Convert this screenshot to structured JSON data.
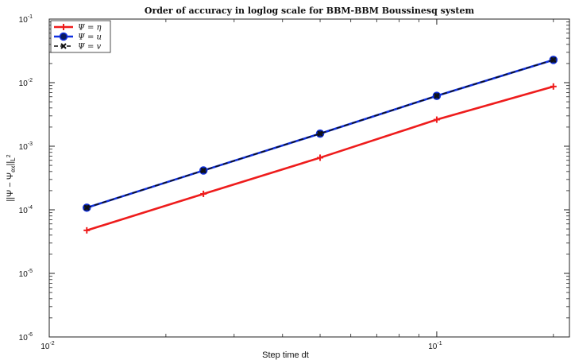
{
  "chart_data": {
    "type": "line",
    "title": "Order of accuracy in loglog scale for BBM-BBM Boussinesq system",
    "xlabel": "Step time dt",
    "ylabel": "||Ψ − Ψex||L2",
    "xscale": "log",
    "yscale": "log",
    "xlim": [
      0.01,
      0.22
    ],
    "ylim": [
      1e-06,
      0.1
    ],
    "grid": false,
    "legend_position": "top-left",
    "x_ticks": [
      {
        "value": 0.01,
        "base": "10",
        "exp": "-2"
      },
      {
        "value": 0.1,
        "base": "10",
        "exp": "-1"
      }
    ],
    "y_ticks": [
      {
        "value": 1e-06,
        "base": "10",
        "exp": "-6"
      },
      {
        "value": 1e-05,
        "base": "10",
        "exp": "-5"
      },
      {
        "value": 0.0001,
        "base": "10",
        "exp": "-4"
      },
      {
        "value": 0.001,
        "base": "10",
        "exp": "-3"
      },
      {
        "value": 0.01,
        "base": "10",
        "exp": "-2"
      },
      {
        "value": 0.1,
        "base": "10",
        "exp": "-1"
      }
    ],
    "x": [
      0.0125,
      0.025,
      0.05,
      0.1,
      0.2
    ],
    "series": [
      {
        "name": "Ψ = η",
        "color": "#ee1c1c",
        "marker": "plus",
        "dashed": false,
        "values": [
          4.75e-05,
          0.000178,
          0.00066,
          0.00262,
          0.0087
        ]
      },
      {
        "name": "Ψ = u",
        "color": "#1030e0",
        "marker": "circle",
        "dashed": false,
        "values": [
          0.000108,
          0.000415,
          0.00158,
          0.0062,
          0.0228
        ]
      },
      {
        "name": "Ψ = v",
        "color": "#111111",
        "marker": "x",
        "dashed": true,
        "values": [
          0.000108,
          0.000415,
          0.00158,
          0.0062,
          0.0228
        ]
      }
    ]
  }
}
